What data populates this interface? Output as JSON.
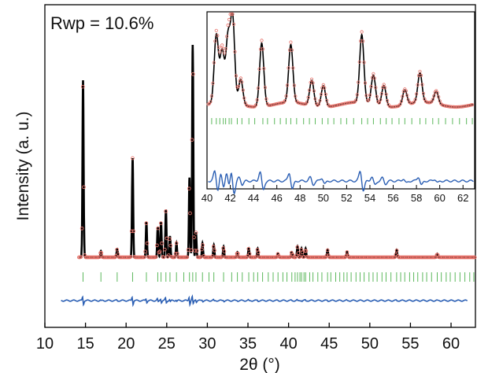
{
  "chart_data": [
    {
      "type": "scatter",
      "subtype": "rietveld-refinement",
      "annotation": "Rwp = 10.6%",
      "xlabel": "2θ (°)",
      "ylabel": "Intensity (a. u.)",
      "xlim": [
        10,
        63
      ],
      "x_ticks": [
        10,
        15,
        20,
        25,
        30,
        35,
        40,
        45,
        50,
        55,
        60
      ],
      "y_ticks_labeled": false,
      "grid": false,
      "series": [
        {
          "role": "observed",
          "marker": "open-circle",
          "color": "#e8736b",
          "peaks": [
            {
              "x": 14.7,
              "y": 100
            },
            {
              "x": 16.9,
              "y": 3.5
            },
            {
              "x": 18.9,
              "y": 4.5
            },
            {
              "x": 20.8,
              "y": 56
            },
            {
              "x": 22.5,
              "y": 20
            },
            {
              "x": 23.9,
              "y": 17
            },
            {
              "x": 24.3,
              "y": 20
            },
            {
              "x": 24.9,
              "y": 27
            },
            {
              "x": 25.4,
              "y": 12
            },
            {
              "x": 26.2,
              "y": 8
            },
            {
              "x": 27.8,
              "y": 45
            },
            {
              "x": 28.2,
              "y": 120
            },
            {
              "x": 28.6,
              "y": 14
            },
            {
              "x": 29.4,
              "y": 8
            },
            {
              "x": 30.8,
              "y": 7
            },
            {
              "x": 32.0,
              "y": 6
            },
            {
              "x": 33.7,
              "y": 3
            },
            {
              "x": 35.1,
              "y": 5
            },
            {
              "x": 36.2,
              "y": 5
            },
            {
              "x": 38.7,
              "y": 2
            },
            {
              "x": 40.4,
              "y": 3
            },
            {
              "x": 41.1,
              "y": 6
            },
            {
              "x": 41.6,
              "y": 5
            },
            {
              "x": 42.1,
              "y": 5
            },
            {
              "x": 44.8,
              "y": 4
            },
            {
              "x": 47.2,
              "y": 3
            },
            {
              "x": 53.3,
              "y": 4
            },
            {
              "x": 58.3,
              "y": 2
            }
          ]
        },
        {
          "role": "calculated",
          "marker": "line",
          "color": "#000000"
        },
        {
          "role": "bragg-positions",
          "marker": "vertical-tick",
          "color": "#5cb85c",
          "x": [
            14.7,
            16.9,
            18.9,
            20.8,
            22.5,
            23.9,
            24.3,
            24.9,
            25.4,
            26.2,
            27.1,
            27.8,
            28.2,
            28.6,
            29.4,
            30.2,
            30.8,
            32.0,
            33.0,
            33.7,
            34.3,
            35.1,
            35.7,
            36.2,
            36.8,
            37.5,
            38.1,
            38.7,
            39.3,
            39.8,
            40.4,
            40.8,
            41.1,
            41.4,
            41.6,
            41.9,
            42.1,
            42.6,
            43.0,
            43.6,
            44.1,
            44.8,
            45.2,
            45.8,
            46.3,
            46.8,
            47.2,
            47.7,
            48.3,
            48.8,
            49.3,
            49.9,
            50.4,
            50.9,
            51.5,
            52.0,
            52.6,
            53.3,
            53.8,
            54.3,
            54.9,
            55.4,
            55.9,
            56.5,
            57.0,
            57.6,
            58.3,
            58.8,
            59.4,
            59.9,
            60.5,
            61.1,
            61.7,
            62.3,
            62.8
          ]
        },
        {
          "role": "difference",
          "marker": "line",
          "color": "#2b5fb4"
        }
      ]
    },
    {
      "type": "scatter",
      "subtype": "rietveld-inset-zoom",
      "xlim": [
        40,
        63
      ],
      "x_ticks": [
        40,
        42,
        44,
        46,
        48,
        50,
        52,
        54,
        56,
        58,
        60,
        62
      ],
      "xlabel": "",
      "ylabel": "",
      "series": [
        {
          "role": "observed",
          "marker": "open-circle",
          "color": "#e8736b",
          "peaks": [
            {
              "x": 40.8,
              "y": 80
            },
            {
              "x": 41.3,
              "y": 60
            },
            {
              "x": 41.8,
              "y": 75
            },
            {
              "x": 42.2,
              "y": 100
            },
            {
              "x": 42.9,
              "y": 30
            },
            {
              "x": 44.7,
              "y": 75
            },
            {
              "x": 47.2,
              "y": 68
            },
            {
              "x": 49.0,
              "y": 30
            },
            {
              "x": 50.0,
              "y": 25
            },
            {
              "x": 53.3,
              "y": 80
            },
            {
              "x": 54.3,
              "y": 35
            },
            {
              "x": 55.2,
              "y": 25
            },
            {
              "x": 57.0,
              "y": 18
            },
            {
              "x": 58.3,
              "y": 35
            },
            {
              "x": 59.7,
              "y": 15
            }
          ]
        },
        {
          "role": "calculated",
          "marker": "line",
          "color": "#000000"
        },
        {
          "role": "bragg-positions",
          "marker": "vertical-tick",
          "color": "#5cb85c"
        },
        {
          "role": "difference",
          "marker": "line",
          "color": "#2b5fb4"
        }
      ]
    }
  ]
}
